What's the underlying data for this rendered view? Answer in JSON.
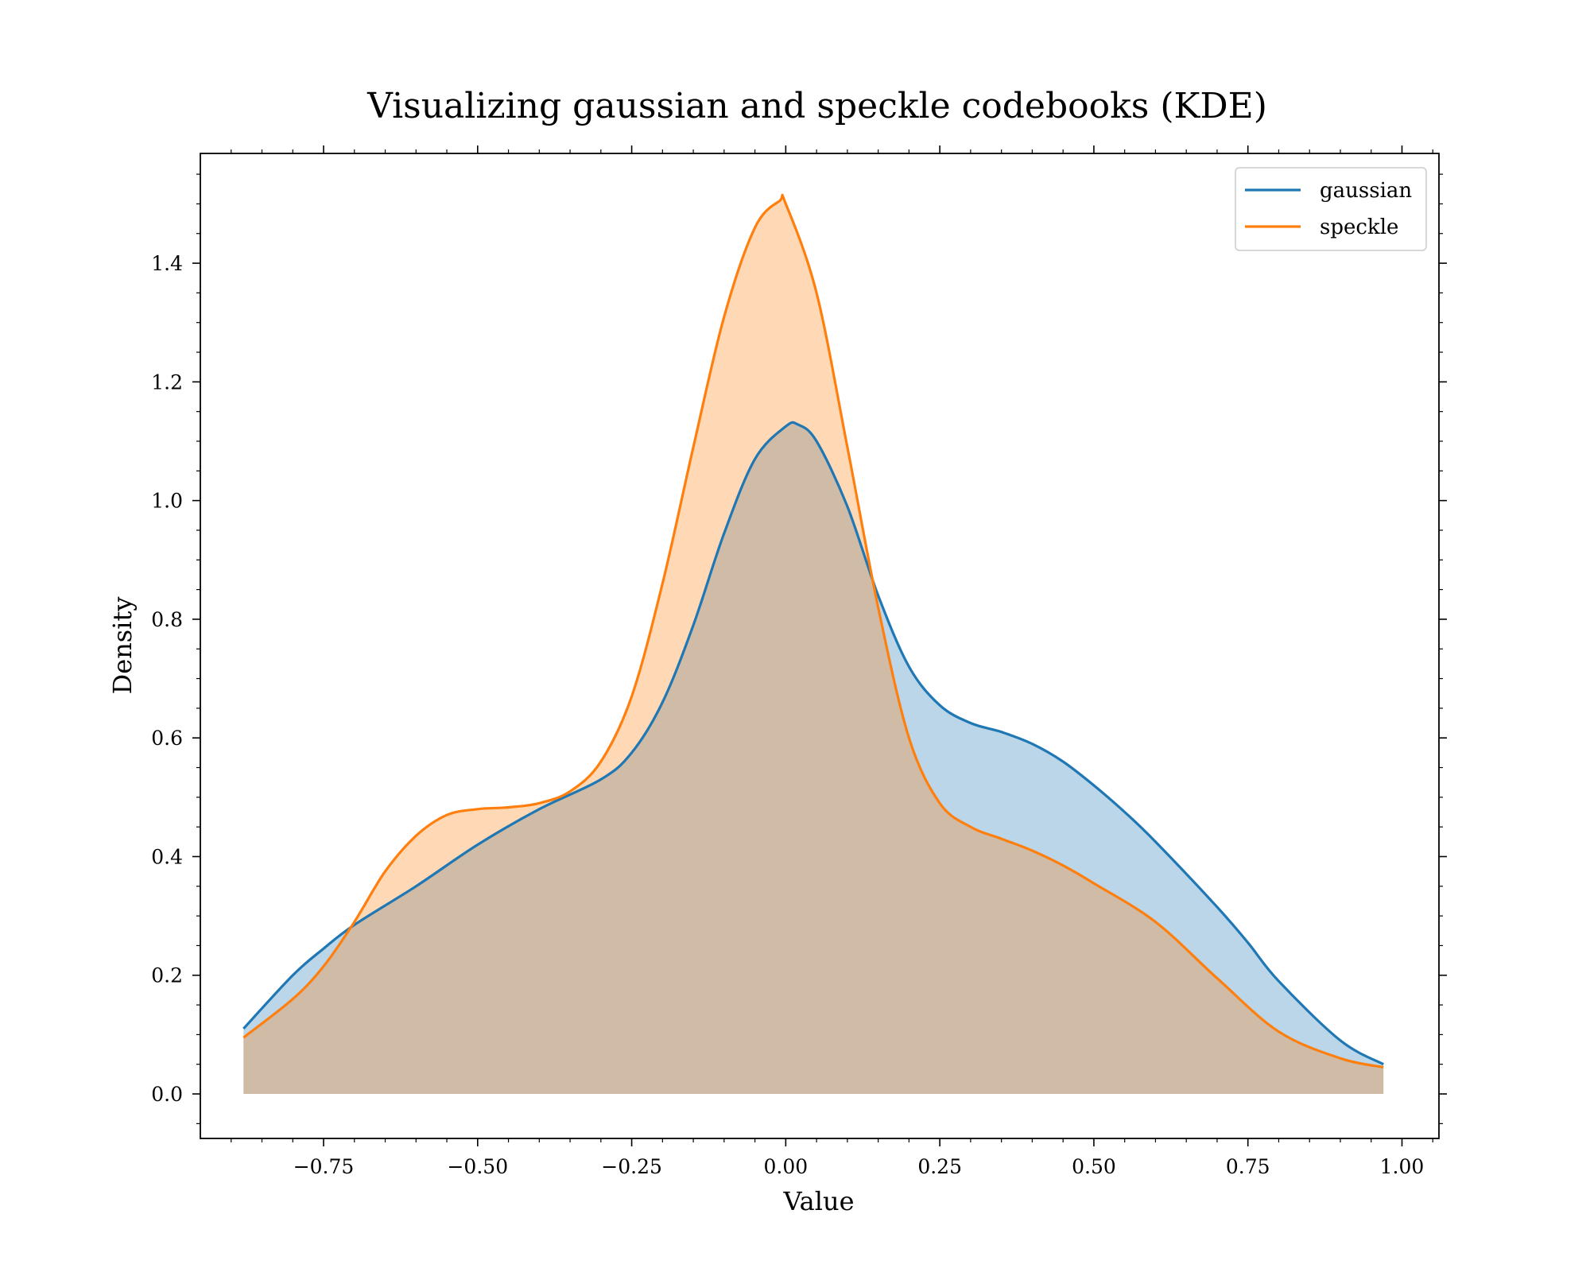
{
  "chart_data": {
    "type": "area",
    "title": "Visualizing gaussian and speckle codebooks (KDE)",
    "xlabel": "Value",
    "ylabel": "Density",
    "xlim": [
      -0.95,
      1.06
    ],
    "ylim": [
      -0.075,
      1.585
    ],
    "x_ticks": [
      -0.75,
      -0.5,
      -0.25,
      0.0,
      0.25,
      0.5,
      0.75,
      1.0
    ],
    "x_tick_labels": [
      "−0.75",
      "−0.50",
      "−0.25",
      "0.00",
      "0.25",
      "0.50",
      "0.75",
      "1.00"
    ],
    "y_ticks": [
      0.0,
      0.2,
      0.4,
      0.6,
      0.8,
      1.0,
      1.2,
      1.4
    ],
    "y_tick_labels": [
      "0.0",
      "0.2",
      "0.4",
      "0.6",
      "0.8",
      "1.0",
      "1.2",
      "1.4"
    ],
    "legend_position": "top-right",
    "grid": false,
    "series": [
      {
        "name": "gaussian",
        "color": "#1f77b4",
        "fill": "#b9d4e8",
        "x": [
          -0.88,
          -0.8,
          -0.75,
          -0.7,
          -0.6,
          -0.5,
          -0.4,
          -0.3,
          -0.25,
          -0.2,
          -0.15,
          -0.1,
          -0.05,
          0.0,
          0.02,
          0.05,
          0.1,
          0.15,
          0.2,
          0.25,
          0.3,
          0.35,
          0.4,
          0.45,
          0.5,
          0.55,
          0.6,
          0.7,
          0.75,
          0.8,
          0.9,
          0.97
        ],
        "y": [
          0.11,
          0.2,
          0.245,
          0.285,
          0.35,
          0.42,
          0.48,
          0.53,
          0.575,
          0.66,
          0.79,
          0.945,
          1.07,
          1.125,
          1.128,
          1.1,
          0.99,
          0.84,
          0.72,
          0.655,
          0.625,
          0.61,
          0.59,
          0.56,
          0.52,
          0.475,
          0.425,
          0.315,
          0.255,
          0.19,
          0.09,
          0.05
        ]
      },
      {
        "name": "speckle",
        "color": "#ff7f0e",
        "fill": "#ffd7b3",
        "x": [
          -0.88,
          -0.8,
          -0.75,
          -0.7,
          -0.65,
          -0.6,
          -0.55,
          -0.5,
          -0.45,
          -0.4,
          -0.35,
          -0.3,
          -0.25,
          -0.2,
          -0.15,
          -0.1,
          -0.05,
          -0.01,
          0.0,
          0.05,
          0.1,
          0.15,
          0.2,
          0.25,
          0.3,
          0.35,
          0.4,
          0.45,
          0.5,
          0.6,
          0.7,
          0.8,
          0.9,
          0.97
        ],
        "y": [
          0.095,
          0.16,
          0.215,
          0.29,
          0.375,
          0.435,
          0.47,
          0.48,
          0.483,
          0.49,
          0.51,
          0.56,
          0.67,
          0.86,
          1.09,
          1.31,
          1.46,
          1.505,
          1.5,
          1.35,
          1.09,
          0.82,
          0.6,
          0.49,
          0.45,
          0.43,
          0.41,
          0.385,
          0.355,
          0.29,
          0.195,
          0.105,
          0.06,
          0.045
        ]
      }
    ]
  }
}
